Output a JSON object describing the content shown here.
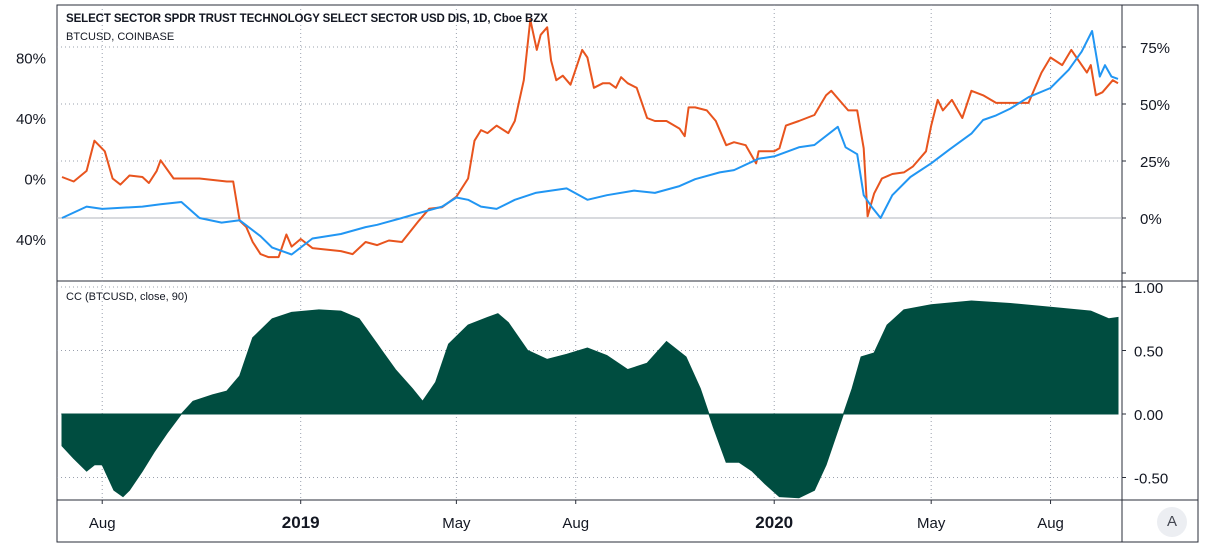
{
  "chart_data": [
    {
      "type": "line",
      "title": "SELECT SECTOR SPDR TRUST TECHNOLOGY SELECT SECTOR USD DIS, 1D, Cboe BZX",
      "subtitle": "BTCUSD, COINBASE",
      "left_axis": {
        "ticks": [
          "80%",
          "40%",
          "0%",
          "40%"
        ],
        "tick_values": [
          80,
          40,
          0,
          -40
        ]
      },
      "right_axis": {
        "ticks": [
          "75%",
          "50%",
          "25%",
          "0%"
        ],
        "tick_values": [
          75,
          50,
          25,
          0
        ]
      },
      "x_ticks": [
        "Aug",
        "2019",
        "May",
        "Aug",
        "2020",
        "May",
        "Aug"
      ],
      "x_tick_dates": [
        "2018-08-01",
        "2019-01-01",
        "2019-05-01",
        "2019-08-01",
        "2020-01-01",
        "2020-05-01",
        "2020-08-01"
      ],
      "grid": true,
      "series": [
        {
          "name": "BTCUSD",
          "color": "#e8541e",
          "axis": "left",
          "points": [
            [
              "2018-07-01",
              1
            ],
            [
              "2018-07-10",
              -2
            ],
            [
              "2018-07-20",
              5
            ],
            [
              "2018-07-26",
              25
            ],
            [
              "2018-08-03",
              18
            ],
            [
              "2018-08-09",
              0
            ],
            [
              "2018-08-15",
              -4
            ],
            [
              "2018-08-22",
              2
            ],
            [
              "2018-09-01",
              1
            ],
            [
              "2018-09-06",
              -3
            ],
            [
              "2018-09-12",
              5
            ],
            [
              "2018-09-15",
              12
            ],
            [
              "2018-09-25",
              0
            ],
            [
              "2018-10-15",
              0
            ],
            [
              "2018-11-05",
              -2
            ],
            [
              "2018-11-10",
              -2
            ],
            [
              "2018-11-15",
              -28
            ],
            [
              "2018-11-20",
              -32
            ],
            [
              "2018-11-25",
              -42
            ],
            [
              "2018-12-01",
              -50
            ],
            [
              "2018-12-07",
              -52
            ],
            [
              "2018-12-15",
              -52
            ],
            [
              "2018-12-21",
              -37
            ],
            [
              "2018-12-25",
              -45
            ],
            [
              "2019-01-01",
              -40
            ],
            [
              "2019-01-10",
              -46
            ],
            [
              "2019-02-01",
              -48
            ],
            [
              "2019-02-10",
              -50
            ],
            [
              "2019-02-20",
              -42
            ],
            [
              "2019-03-01",
              -44
            ],
            [
              "2019-03-10",
              -41
            ],
            [
              "2019-03-20",
              -42
            ],
            [
              "2019-04-02",
              -28
            ],
            [
              "2019-04-10",
              -20
            ],
            [
              "2019-04-20",
              -19
            ],
            [
              "2019-05-01",
              -12
            ],
            [
              "2019-05-10",
              0
            ],
            [
              "2019-05-15",
              25
            ],
            [
              "2019-05-20",
              32
            ],
            [
              "2019-05-25",
              30
            ],
            [
              "2019-06-01",
              35
            ],
            [
              "2019-06-10",
              30
            ],
            [
              "2019-06-15",
              38
            ],
            [
              "2019-06-22",
              65
            ],
            [
              "2019-06-27",
              105
            ],
            [
              "2019-07-02",
              85
            ],
            [
              "2019-07-05",
              95
            ],
            [
              "2019-07-10",
              100
            ],
            [
              "2019-07-13",
              78
            ],
            [
              "2019-07-17",
              65
            ],
            [
              "2019-07-22",
              68
            ],
            [
              "2019-07-28",
              62
            ],
            [
              "2019-08-06",
              85
            ],
            [
              "2019-08-10",
              80
            ],
            [
              "2019-08-15",
              60
            ],
            [
              "2019-08-22",
              63
            ],
            [
              "2019-08-27",
              63
            ],
            [
              "2019-09-01",
              60
            ],
            [
              "2019-09-05",
              67
            ],
            [
              "2019-09-10",
              63
            ],
            [
              "2019-09-17",
              60
            ],
            [
              "2019-09-25",
              40
            ],
            [
              "2019-10-01",
              38
            ],
            [
              "2019-10-10",
              38
            ],
            [
              "2019-10-20",
              33
            ],
            [
              "2019-10-24",
              28
            ],
            [
              "2019-10-27",
              47
            ],
            [
              "2019-11-01",
              47
            ],
            [
              "2019-11-10",
              45
            ],
            [
              "2019-11-17",
              38
            ],
            [
              "2019-11-22",
              28
            ],
            [
              "2019-11-25",
              22
            ],
            [
              "2019-12-01",
              24
            ],
            [
              "2019-12-10",
              22
            ],
            [
              "2019-12-18",
              10
            ],
            [
              "2019-12-20",
              18
            ],
            [
              "2020-01-01",
              18
            ],
            [
              "2020-01-05",
              20
            ],
            [
              "2020-01-10",
              35
            ],
            [
              "2020-01-20",
              38
            ],
            [
              "2020-02-01",
              42
            ],
            [
              "2020-02-10",
              55
            ],
            [
              "2020-02-14",
              58
            ],
            [
              "2020-02-20",
              52
            ],
            [
              "2020-02-27",
              45
            ],
            [
              "2020-03-05",
              45
            ],
            [
              "2020-03-10",
              20
            ],
            [
              "2020-03-13",
              -25
            ],
            [
              "2020-03-18",
              -10
            ],
            [
              "2020-03-24",
              0
            ],
            [
              "2020-04-01",
              3
            ],
            [
              "2020-04-10",
              4
            ],
            [
              "2020-04-17",
              8
            ],
            [
              "2020-04-27",
              18
            ],
            [
              "2020-05-01",
              35
            ],
            [
              "2020-05-06",
              52
            ],
            [
              "2020-05-10",
              45
            ],
            [
              "2020-05-17",
              52
            ],
            [
              "2020-05-25",
              40
            ],
            [
              "2020-06-01",
              58
            ],
            [
              "2020-06-10",
              55
            ],
            [
              "2020-06-20",
              50
            ],
            [
              "2020-07-01",
              50
            ],
            [
              "2020-07-15",
              50
            ],
            [
              "2020-07-25",
              70
            ],
            [
              "2020-08-01",
              80
            ],
            [
              "2020-08-10",
              75
            ],
            [
              "2020-08-17",
              85
            ],
            [
              "2020-08-25",
              75
            ],
            [
              "2020-08-29",
              70
            ],
            [
              "2020-09-01",
              75
            ],
            [
              "2020-09-05",
              55
            ],
            [
              "2020-09-10",
              57
            ],
            [
              "2020-09-18",
              65
            ],
            [
              "2020-09-22",
              63
            ]
          ]
        },
        {
          "name": "SELECT SECTOR SPDR TRUST TECHNOLOGY SELECT SECTOR",
          "color": "#2196f3",
          "axis": "right",
          "points": [
            [
              "2018-07-01",
              0
            ],
            [
              "2018-07-20",
              5
            ],
            [
              "2018-08-01",
              4
            ],
            [
              "2018-09-01",
              5
            ],
            [
              "2018-09-15",
              6
            ],
            [
              "2018-10-01",
              7
            ],
            [
              "2018-10-15",
              0
            ],
            [
              "2018-11-01",
              -2
            ],
            [
              "2018-11-15",
              -1
            ],
            [
              "2018-12-01",
              -8
            ],
            [
              "2018-12-10",
              -13
            ],
            [
              "2018-12-25",
              -16
            ],
            [
              "2019-01-10",
              -9
            ],
            [
              "2019-02-01",
              -7
            ],
            [
              "2019-02-20",
              -4
            ],
            [
              "2019-03-01",
              -3
            ],
            [
              "2019-03-20",
              0
            ],
            [
              "2019-04-01",
              2
            ],
            [
              "2019-04-20",
              5
            ],
            [
              "2019-05-01",
              9
            ],
            [
              "2019-05-10",
              8
            ],
            [
              "2019-05-20",
              5
            ],
            [
              "2019-06-01",
              4
            ],
            [
              "2019-06-15",
              8
            ],
            [
              "2019-07-01",
              11
            ],
            [
              "2019-07-25",
              13
            ],
            [
              "2019-08-10",
              8
            ],
            [
              "2019-08-25",
              10
            ],
            [
              "2019-09-15",
              12
            ],
            [
              "2019-10-01",
              11
            ],
            [
              "2019-10-20",
              14
            ],
            [
              "2019-11-01",
              17
            ],
            [
              "2019-11-20",
              20
            ],
            [
              "2019-12-01",
              21
            ],
            [
              "2019-12-20",
              26
            ],
            [
              "2020-01-01",
              27
            ],
            [
              "2020-01-20",
              31
            ],
            [
              "2020-02-01",
              32
            ],
            [
              "2020-02-19",
              40
            ],
            [
              "2020-02-25",
              31
            ],
            [
              "2020-03-05",
              28
            ],
            [
              "2020-03-10",
              10
            ],
            [
              "2020-03-16",
              5
            ],
            [
              "2020-03-23",
              0
            ],
            [
              "2020-04-01",
              10
            ],
            [
              "2020-04-15",
              18
            ],
            [
              "2020-05-01",
              24
            ],
            [
              "2020-05-15",
              30
            ],
            [
              "2020-06-01",
              37
            ],
            [
              "2020-06-10",
              43
            ],
            [
              "2020-06-20",
              45
            ],
            [
              "2020-07-01",
              48
            ],
            [
              "2020-07-15",
              53
            ],
            [
              "2020-08-01",
              57
            ],
            [
              "2020-08-15",
              65
            ],
            [
              "2020-08-25",
              73
            ],
            [
              "2020-09-02",
              82
            ],
            [
              "2020-09-08",
              62
            ],
            [
              "2020-09-12",
              67
            ],
            [
              "2020-09-17",
              62
            ],
            [
              "2020-09-22",
              61
            ]
          ]
        }
      ]
    },
    {
      "type": "area",
      "title": "CC (BTCUSD, close, 90)",
      "right_axis": {
        "ticks": [
          "1.00",
          "0.50",
          "0.00",
          "-0.50"
        ],
        "tick_values": [
          1.0,
          0.5,
          0.0,
          -0.5
        ]
      },
      "ylim": [
        -0.67,
        1.0
      ],
      "color": "#004d40",
      "series": [
        {
          "name": "CC",
          "points": [
            [
              "2018-07-01",
              -0.25
            ],
            [
              "2018-07-10",
              -0.35
            ],
            [
              "2018-07-20",
              -0.45
            ],
            [
              "2018-07-26",
              -0.4
            ],
            [
              "2018-08-01",
              -0.4
            ],
            [
              "2018-08-10",
              -0.6
            ],
            [
              "2018-08-17",
              -0.65
            ],
            [
              "2018-08-22",
              -0.6
            ],
            [
              "2018-09-01",
              -0.45
            ],
            [
              "2018-09-10",
              -0.3
            ],
            [
              "2018-09-20",
              -0.15
            ],
            [
              "2018-10-01",
              0.0
            ],
            [
              "2018-10-10",
              0.1
            ],
            [
              "2018-10-25",
              0.15
            ],
            [
              "2018-11-05",
              0.18
            ],
            [
              "2018-11-15",
              0.3
            ],
            [
              "2018-11-25",
              0.6
            ],
            [
              "2018-12-10",
              0.75
            ],
            [
              "2018-12-25",
              0.8
            ],
            [
              "2019-01-15",
              0.82
            ],
            [
              "2019-02-01",
              0.81
            ],
            [
              "2019-02-15",
              0.75
            ],
            [
              "2019-03-01",
              0.55
            ],
            [
              "2019-03-15",
              0.35
            ],
            [
              "2019-03-28",
              0.2
            ],
            [
              "2019-04-05",
              0.1
            ],
            [
              "2019-04-15",
              0.25
            ],
            [
              "2019-04-25",
              0.55
            ],
            [
              "2019-05-10",
              0.7
            ],
            [
              "2019-05-25",
              0.76
            ],
            [
              "2019-06-02",
              0.79
            ],
            [
              "2019-06-10",
              0.72
            ],
            [
              "2019-06-25",
              0.5
            ],
            [
              "2019-07-10",
              0.43
            ],
            [
              "2019-07-25",
              0.47
            ],
            [
              "2019-08-10",
              0.52
            ],
            [
              "2019-08-25",
              0.46
            ],
            [
              "2019-09-10",
              0.35
            ],
            [
              "2019-09-25",
              0.4
            ],
            [
              "2019-10-10",
              0.57
            ],
            [
              "2019-10-25",
              0.45
            ],
            [
              "2019-11-05",
              0.2
            ],
            [
              "2019-11-15",
              -0.1
            ],
            [
              "2019-11-25",
              -0.38
            ],
            [
              "2019-12-05",
              -0.38
            ],
            [
              "2019-12-15",
              -0.45
            ],
            [
              "2019-12-25",
              -0.55
            ],
            [
              "2020-01-05",
              -0.65
            ],
            [
              "2020-01-20",
              -0.66
            ],
            [
              "2020-02-01",
              -0.6
            ],
            [
              "2020-02-10",
              -0.4
            ],
            [
              "2020-02-20",
              -0.1
            ],
            [
              "2020-03-01",
              0.2
            ],
            [
              "2020-03-08",
              0.45
            ],
            [
              "2020-03-18",
              0.48
            ],
            [
              "2020-03-28",
              0.7
            ],
            [
              "2020-04-10",
              0.82
            ],
            [
              "2020-05-01",
              0.86
            ],
            [
              "2020-06-01",
              0.89
            ],
            [
              "2020-07-01",
              0.87
            ],
            [
              "2020-08-01",
              0.84
            ],
            [
              "2020-09-01",
              0.81
            ],
            [
              "2020-09-15",
              0.75
            ],
            [
              "2020-09-22",
              0.76
            ]
          ]
        }
      ]
    }
  ],
  "ui": {
    "scale_button": "A"
  }
}
